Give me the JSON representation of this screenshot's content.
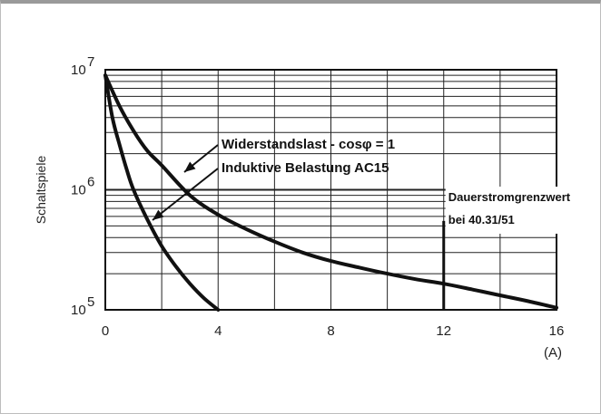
{
  "chart_data": {
    "type": "line",
    "ylabel": "Schaltspiele",
    "x_unit_label": "(A)",
    "xlim": [
      0,
      16
    ],
    "ylim": [
      100000,
      10000000
    ],
    "y_scale": "log",
    "grid": true,
    "x_ticks": [
      "0",
      "4",
      "8",
      "12",
      "16"
    ],
    "y_ticks": [
      {
        "base": "10",
        "exp": "7"
      },
      {
        "base": "10",
        "exp": "6"
      },
      {
        "base": "10",
        "exp": "5"
      }
    ],
    "series": [
      {
        "name": "Widerstandslast - cosφ = 1",
        "x": [
          0,
          0.5,
          1,
          1.5,
          2,
          3,
          4,
          5,
          6,
          7,
          8,
          9,
          10,
          11,
          12,
          13,
          14,
          15,
          16
        ],
        "y": [
          9000000,
          5000000,
          3100000,
          2100000,
          1600000,
          900000,
          620000,
          470000,
          370000,
          300000,
          255000,
          225000,
          200000,
          180000,
          165000,
          148000,
          132000,
          118000,
          104000
        ]
      },
      {
        "name": "Induktive Belastung AC15",
        "x": [
          0,
          0.25,
          0.5,
          0.75,
          1,
          1.5,
          2,
          2.5,
          3,
          3.5,
          4
        ],
        "y": [
          9000000,
          4000000,
          2400000,
          1500000,
          1000000,
          560000,
          340000,
          230000,
          165000,
          125000,
          100000
        ]
      }
    ],
    "annotations": {
      "limit_label_1": "Dauerstromgrenzwert",
      "limit_label_2": "bei 40.31/51",
      "limit_x": 12,
      "limit_y_top": 550000
    }
  }
}
